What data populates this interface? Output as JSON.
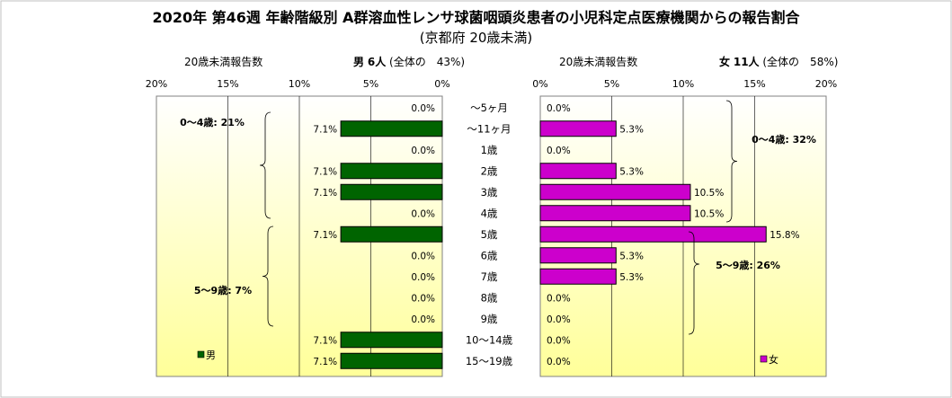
{
  "title": "2020年 第46週 年齢階級別 A群溶血性レンサ球菌咽頭炎患者の小児科定点医療機関からの報告割合",
  "subtitle": "(京都府 20歳未満)",
  "male_header": {
    "count_label": "20歳未満報告数",
    "sex_label": "男",
    "count": "6人",
    "share": "(全体の　43%)"
  },
  "female_header": {
    "count_label": "20歳未満報告数",
    "sex_label": "女",
    "count": "11人",
    "share": "(全体の　58%)"
  },
  "colors": {
    "male": "#006400",
    "female": "#cc00cc",
    "plot_gradient_top": "#ffffff",
    "plot_gradient_bottom": "#ffff99",
    "grid": "#000000"
  },
  "chart_data": [
    {
      "type": "bar",
      "orientation": "horizontal-reversed",
      "series": [
        {
          "name": "男",
          "color": "#006400"
        }
      ],
      "categories": [
        "～5ヶ月",
        "～11ヶ月",
        "1歳",
        "2歳",
        "3歳",
        "4歳",
        "5歳",
        "6歳",
        "7歳",
        "8歳",
        "9歳",
        "10～14歳",
        "15～19歳"
      ],
      "values": [
        0.0,
        7.1,
        0.0,
        7.1,
        7.1,
        0.0,
        7.1,
        0.0,
        0.0,
        0.0,
        0.0,
        7.1,
        7.1
      ],
      "value_labels": [
        "0.0%",
        "7.1%",
        "0.0%",
        "7.1%",
        "7.1%",
        "0.0%",
        "7.1%",
        "0.0%",
        "0.0%",
        "0.0%",
        "0.0%",
        "7.1%",
        "7.1%"
      ],
      "xlim": [
        0,
        20
      ],
      "ticks": [
        "20%",
        "15%",
        "10%",
        "5%",
        "0%"
      ],
      "grid": true,
      "legend": "bottom-left",
      "annotations": [
        {
          "label": "0～4歳: 21%",
          "from": 0,
          "to": 5
        },
        {
          "label": "5～9歳: 7%",
          "from": 6,
          "to": 10
        }
      ]
    },
    {
      "type": "bar",
      "orientation": "horizontal",
      "series": [
        {
          "name": "女",
          "color": "#cc00cc"
        }
      ],
      "categories": [
        "～5ヶ月",
        "～11ヶ月",
        "1歳",
        "2歳",
        "3歳",
        "4歳",
        "5歳",
        "6歳",
        "7歳",
        "8歳",
        "9歳",
        "10～14歳",
        "15～19歳"
      ],
      "values": [
        0.0,
        5.3,
        0.0,
        5.3,
        10.5,
        10.5,
        15.8,
        5.3,
        5.3,
        0.0,
        0.0,
        0.0,
        0.0
      ],
      "value_labels": [
        "0.0%",
        "5.3%",
        "0.0%",
        "5.3%",
        "10.5%",
        "10.5%",
        "15.8%",
        "5.3%",
        "5.3%",
        "0.0%",
        "0.0%",
        "0.0%",
        "0.0%"
      ],
      "xlim": [
        0,
        20
      ],
      "ticks": [
        "0%",
        "5%",
        "10%",
        "15%",
        "20%"
      ],
      "grid": true,
      "legend": "bottom-right",
      "annotations": [
        {
          "label": "0～4歳: 32%",
          "from": 0,
          "to": 5
        },
        {
          "label": "5～9歳: 26%",
          "from": 6,
          "to": 10
        }
      ]
    }
  ]
}
